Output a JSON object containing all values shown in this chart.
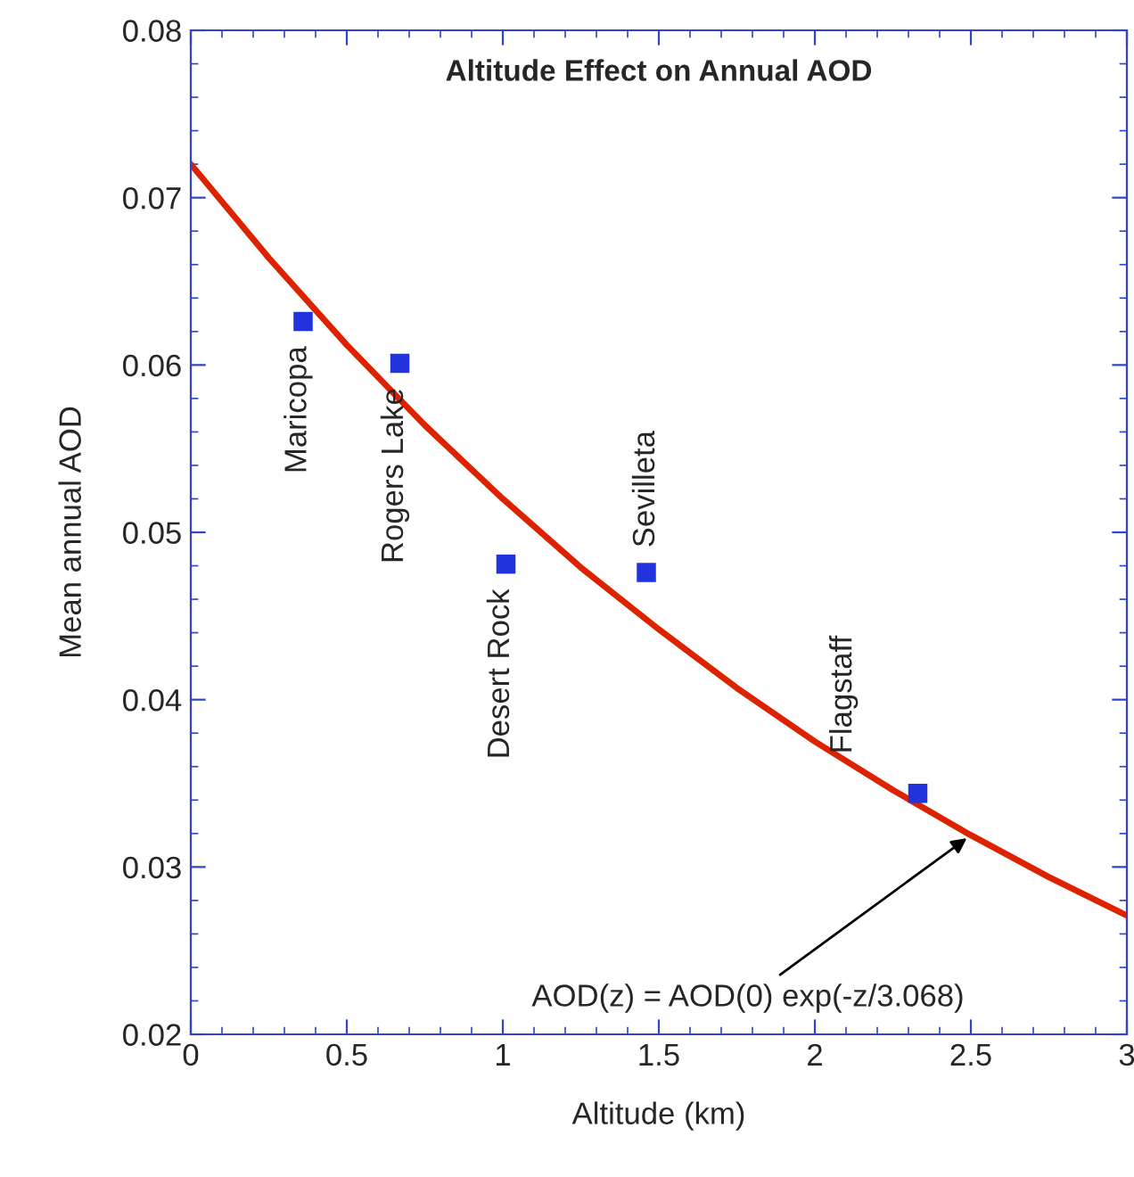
{
  "chart_data": {
    "type": "scatter",
    "title": "Altitude Effect on Annual AOD",
    "xlabel": "Altitude (km)",
    "ylabel": "Mean annual AOD",
    "xlim": [
      0,
      3
    ],
    "ylim": [
      0.02,
      0.08
    ],
    "xticks": [
      0,
      0.5,
      1,
      1.5,
      2,
      2.5,
      3
    ],
    "yticks": [
      0.02,
      0.03,
      0.04,
      0.05,
      0.06,
      0.07,
      0.08
    ],
    "grid": false,
    "legend": false,
    "marker": "square",
    "series": [
      {
        "color": "#2233dd",
        "x": [
          0.36,
          0.67,
          1.01,
          1.46,
          2.33
        ],
        "values": [
          0.0626,
          0.0601,
          0.0481,
          0.0476,
          0.0344
        ]
      },
      {
        "type": "line",
        "color": "#dd2200",
        "marker": "none",
        "line_style": "solid",
        "x": [
          0,
          0.25,
          0.5,
          0.75,
          1,
          1.25,
          1.5,
          1.75,
          2,
          2.25,
          2.5,
          2.75,
          3
        ],
        "values": [
          0.072,
          0.0664,
          0.0612,
          0.0564,
          0.052,
          0.0479,
          0.0442,
          0.0407,
          0.0375,
          0.0346,
          0.0319,
          0.0294,
          0.0271
        ]
      }
    ],
    "annotations": [
      {
        "text": "Maricopa",
        "x": 0.36,
        "y": 0.0626
      },
      {
        "text": "Rogers Lake",
        "x": 0.67,
        "y": 0.0601
      },
      {
        "text": "Desert Rock",
        "x": 1.01,
        "y": 0.0481
      },
      {
        "text": "Sevilleta",
        "x": 1.46,
        "y": 0.0476
      },
      {
        "text": "Flagstaff",
        "x": 2.33,
        "y": 0.0344
      },
      {
        "text": "AOD(z) = AOD(0) exp(-z/3.068)",
        "x": 2.5,
        "y": 0.0319
      }
    ]
  }
}
